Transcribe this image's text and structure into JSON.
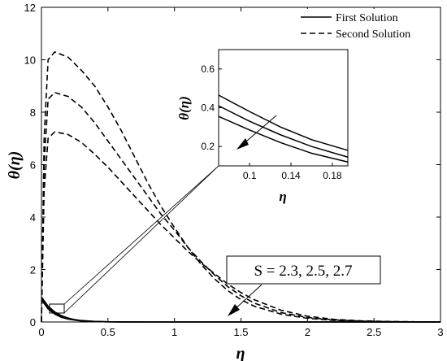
{
  "chart_data": {
    "type": "line",
    "xlabel": "η",
    "ylabel": "θ(η)",
    "xlim": [
      0,
      3
    ],
    "ylim": [
      0,
      12
    ],
    "xticks": [
      "0",
      "0.5",
      "1",
      "1.5",
      "2",
      "2.5",
      "3"
    ],
    "yticks": [
      "0",
      "2",
      "4",
      "6",
      "8",
      "10",
      "12"
    ],
    "grid": false,
    "legend_position": "top-right",
    "legend": [
      {
        "label": "First Solution",
        "style": "solid"
      },
      {
        "label": "Second Solution",
        "style": "dashed"
      }
    ],
    "annotation": "S = 2.3, 2.5, 2.7",
    "series": [
      {
        "style": "dashed",
        "x": [
          0,
          0.02,
          0.05,
          0.1,
          0.2,
          0.3,
          0.4,
          0.5,
          0.6,
          0.7,
          0.8,
          0.9,
          1.0,
          1.1,
          1.2,
          1.3,
          1.4,
          1.5,
          1.6,
          1.8,
          2.0,
          2.2,
          2.4,
          2.6,
          2.8,
          3.0
        ],
        "y": [
          0,
          7.0,
          10.0,
          10.3,
          10.1,
          9.6,
          9.0,
          8.2,
          7.3,
          6.3,
          5.3,
          4.4,
          3.6,
          2.85,
          2.2,
          1.65,
          1.2,
          0.85,
          0.6,
          0.3,
          0.14,
          0.06,
          0.03,
          0.01,
          0.005,
          0.0
        ]
      },
      {
        "style": "dashed",
        "x": [
          0,
          0.02,
          0.05,
          0.1,
          0.2,
          0.3,
          0.4,
          0.5,
          0.6,
          0.7,
          0.8,
          0.9,
          1.0,
          1.1,
          1.2,
          1.3,
          1.4,
          1.5,
          1.6,
          1.8,
          2.0,
          2.2,
          2.4,
          2.6,
          2.8,
          3.0
        ],
        "y": [
          0,
          6.0,
          8.5,
          8.75,
          8.6,
          8.2,
          7.6,
          6.9,
          6.2,
          5.5,
          4.8,
          4.1,
          3.5,
          2.85,
          2.3,
          1.8,
          1.35,
          1.0,
          0.72,
          0.36,
          0.17,
          0.08,
          0.035,
          0.015,
          0.005,
          0.0
        ]
      },
      {
        "style": "dashed",
        "x": [
          0,
          0.02,
          0.05,
          0.1,
          0.2,
          0.3,
          0.4,
          0.5,
          0.6,
          0.7,
          0.8,
          0.9,
          1.0,
          1.1,
          1.2,
          1.3,
          1.4,
          1.5,
          1.6,
          1.8,
          2.0,
          2.2,
          2.4,
          2.6,
          2.8,
          3.0
        ],
        "y": [
          0,
          5.0,
          7.0,
          7.25,
          7.15,
          6.85,
          6.4,
          5.9,
          5.35,
          4.8,
          4.25,
          3.7,
          3.2,
          2.7,
          2.25,
          1.85,
          1.45,
          1.12,
          0.85,
          0.45,
          0.22,
          0.1,
          0.045,
          0.02,
          0.008,
          0.0
        ]
      },
      {
        "style": "solid",
        "x": [
          0,
          0.05,
          0.1,
          0.15,
          0.2,
          0.25,
          0.3,
          0.4,
          0.5,
          0.6,
          0.8,
          1.0,
          1.5,
          2.0,
          2.5,
          3.0
        ],
        "y": [
          0.95,
          0.6,
          0.38,
          0.24,
          0.15,
          0.09,
          0.055,
          0.02,
          0.008,
          0.003,
          0.0,
          0.0,
          0.0,
          0.0,
          0.0,
          0.0
        ]
      },
      {
        "style": "solid",
        "x": [
          0,
          0.05,
          0.1,
          0.15,
          0.2,
          0.25,
          0.3,
          0.4,
          0.5,
          0.6,
          0.8,
          1.0,
          1.5,
          2.0,
          2.5,
          3.0
        ],
        "y": [
          0.9,
          0.55,
          0.34,
          0.21,
          0.13,
          0.08,
          0.048,
          0.018,
          0.007,
          0.003,
          0.0,
          0.0,
          0.0,
          0.0,
          0.0,
          0.0
        ]
      },
      {
        "style": "solid",
        "x": [
          0,
          0.05,
          0.1,
          0.15,
          0.2,
          0.25,
          0.3,
          0.4,
          0.5,
          0.6,
          0.8,
          1.0,
          1.5,
          2.0,
          2.5,
          3.0
        ],
        "y": [
          0.85,
          0.5,
          0.3,
          0.18,
          0.11,
          0.07,
          0.042,
          0.016,
          0.006,
          0.002,
          0.0,
          0.0,
          0.0,
          0.0,
          0.0,
          0.0
        ]
      }
    ],
    "inset": {
      "xlabel": "η",
      "ylabel": "θ(η)",
      "xlim": [
        0.07,
        0.195
      ],
      "ylim": [
        0.1,
        0.7
      ],
      "xticks": [
        "0.1",
        "0.14",
        "0.18"
      ],
      "xtick_values": [
        0.1,
        0.14,
        0.18
      ],
      "yticks": [
        "0.2",
        "0.4",
        "0.6"
      ],
      "ytick_values": [
        0.2,
        0.4,
        0.6
      ],
      "series": [
        {
          "style": "solid",
          "x": [
            0.07,
            0.1,
            0.13,
            0.16,
            0.195
          ],
          "y": [
            0.465,
            0.38,
            0.3,
            0.235,
            0.18
          ]
        },
        {
          "style": "solid",
          "x": [
            0.07,
            0.1,
            0.13,
            0.16,
            0.195
          ],
          "y": [
            0.41,
            0.33,
            0.26,
            0.2,
            0.145
          ]
        },
        {
          "style": "solid",
          "x": [
            0.07,
            0.1,
            0.13,
            0.16,
            0.195
          ],
          "y": [
            0.355,
            0.285,
            0.22,
            0.165,
            0.12
          ]
        }
      ]
    }
  }
}
